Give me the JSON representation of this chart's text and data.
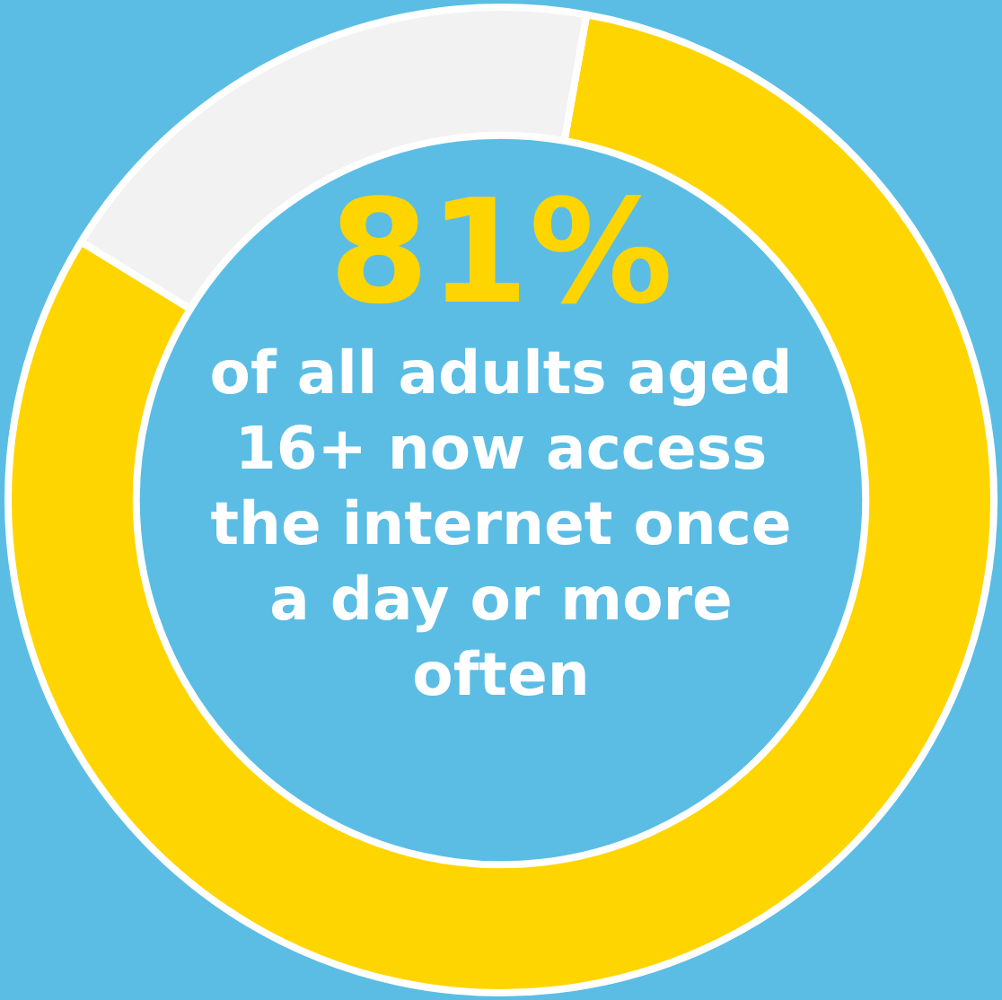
{
  "chart_data": {
    "type": "donut",
    "title": "81%",
    "subtitle": "of all adults aged 16+ now access the internet once a day or more often",
    "categories": [
      null,
      null
    ],
    "values": [
      81,
      19
    ],
    "colors": [
      "#ffd500",
      "#f2f2f2"
    ]
  }
}
